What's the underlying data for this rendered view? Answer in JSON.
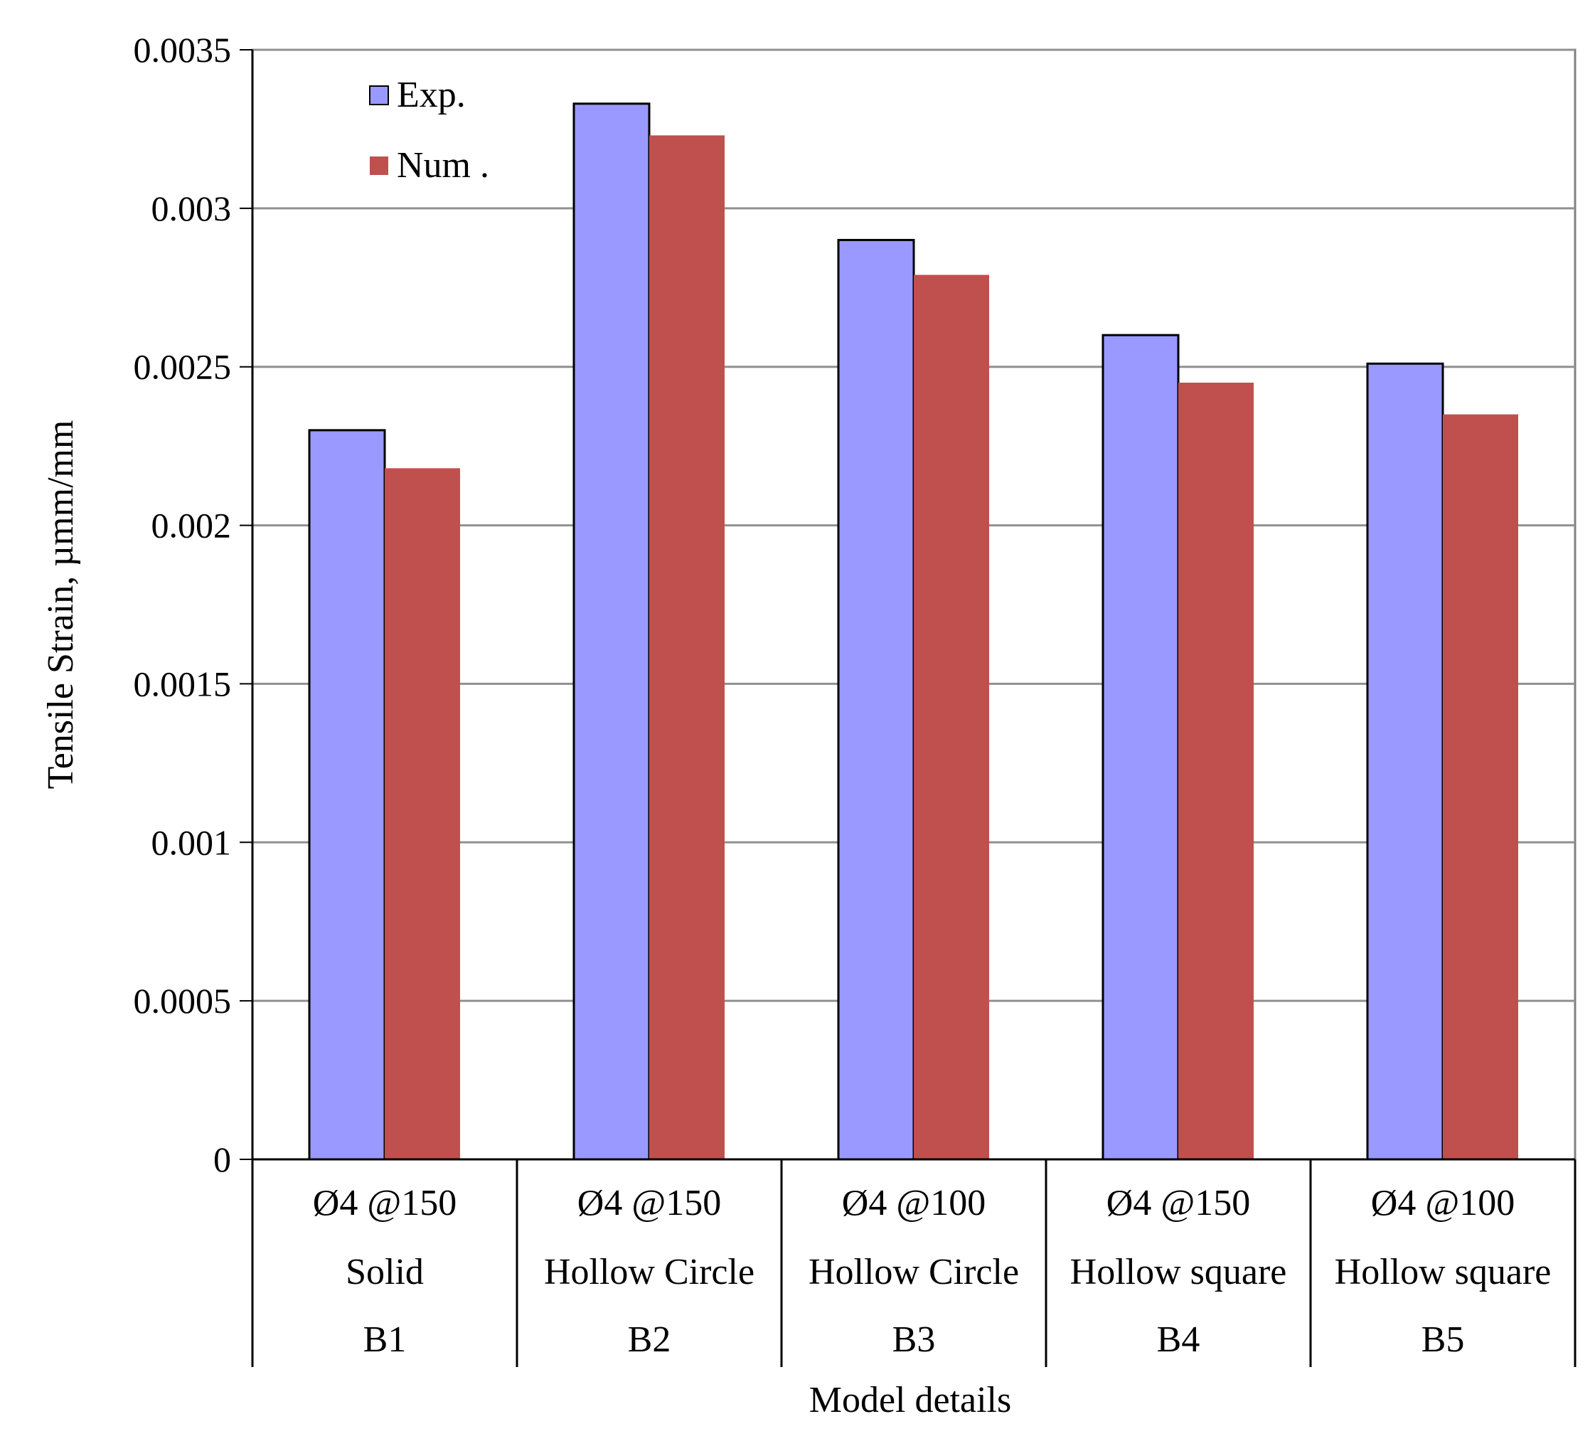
{
  "chart_data": {
    "type": "bar",
    "title": "",
    "ylabel": "Tensile Strain, µmm/mm",
    "xlabel": "Model details",
    "ylim": [
      0,
      0.0035
    ],
    "yticks": [
      0,
      0.0005,
      0.001,
      0.0015,
      0.002,
      0.0025,
      0.003,
      0.0035
    ],
    "ytick_labels": [
      "0",
      "0.0005",
      "0.001",
      "0.0015",
      "0.002",
      "0.0025",
      "0.003",
      "0.0035"
    ],
    "grid": "horizontal",
    "legend_position": "top-left",
    "categories": [
      {
        "line1": "Ø4 @150",
        "line2": "Solid",
        "line3": "B1"
      },
      {
        "line1": "Ø4 @150",
        "line2": "Hollow Circle",
        "line3": "B2"
      },
      {
        "line1": "Ø4 @100",
        "line2": "Hollow Circle",
        "line3": "B3"
      },
      {
        "line1": "Ø4 @150",
        "line2": "Hollow square",
        "line3": "B4"
      },
      {
        "line1": "Ø4 @100",
        "line2": "Hollow square",
        "line3": "B5"
      }
    ],
    "series": [
      {
        "name": "Exp.",
        "color": "#9999ff",
        "values": [
          0.0023,
          0.00333,
          0.0029,
          0.0026,
          0.00251
        ]
      },
      {
        "name": "Num .",
        "color": "#c0504d",
        "values": [
          0.00218,
          0.00323,
          0.00279,
          0.00245,
          0.00235
        ]
      }
    ]
  }
}
